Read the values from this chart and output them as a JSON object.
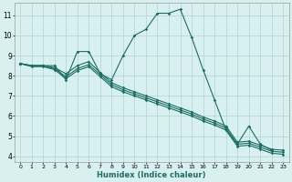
{
  "xlabel": "Humidex (Indice chaleur)",
  "bg_color": "#d8f0f0",
  "grid_color": "#b8d8d8",
  "line_color": "#1a6e64",
  "xlim": [
    -0.5,
    23.5
  ],
  "ylim": [
    3.7,
    11.6
  ],
  "xtick_labels": [
    "0",
    "1",
    "2",
    "3",
    "4",
    "5",
    "6",
    "7",
    "8",
    "9",
    "10",
    "11",
    "12",
    "13",
    "14",
    "15",
    "16",
    "17",
    "18",
    "19",
    "20",
    "21",
    "22",
    "23"
  ],
  "xtick_vals": [
    0,
    1,
    2,
    3,
    4,
    5,
    6,
    7,
    8,
    9,
    10,
    11,
    12,
    13,
    14,
    15,
    16,
    17,
    18,
    19,
    20,
    21,
    22,
    23
  ],
  "ytick_vals": [
    4,
    5,
    6,
    7,
    8,
    9,
    10,
    11
  ],
  "line1_x": [
    0,
    1,
    2,
    3,
    4,
    5,
    6,
    7,
    8,
    9,
    10,
    11,
    12,
    13,
    14,
    15,
    16,
    17,
    18,
    19,
    20,
    21,
    22
  ],
  "line1_y": [
    8.6,
    8.5,
    8.5,
    8.5,
    7.8,
    9.2,
    9.2,
    8.1,
    7.8,
    9.0,
    10.0,
    10.3,
    11.1,
    11.1,
    11.3,
    9.9,
    8.3,
    6.8,
    5.3,
    4.6,
    5.5,
    4.6,
    4.3
  ],
  "line2_x": [
    0,
    1,
    2,
    3,
    4,
    5,
    6,
    7,
    8,
    9,
    10,
    11,
    12,
    13,
    14,
    15,
    16,
    17,
    18,
    19,
    20,
    21,
    22,
    23
  ],
  "line2_y": [
    8.6,
    8.5,
    8.5,
    8.4,
    8.1,
    8.5,
    8.7,
    8.15,
    7.65,
    7.4,
    7.2,
    7.0,
    6.8,
    6.6,
    6.4,
    6.2,
    5.95,
    5.75,
    5.5,
    4.7,
    4.75,
    4.55,
    4.35,
    4.3
  ],
  "line3_x": [
    0,
    1,
    2,
    3,
    4,
    5,
    6,
    7,
    8,
    9,
    10,
    11,
    12,
    13,
    14,
    15,
    16,
    17,
    18,
    19,
    20,
    21,
    22,
    23
  ],
  "line3_y": [
    8.6,
    8.5,
    8.5,
    8.35,
    7.95,
    8.35,
    8.55,
    8.05,
    7.55,
    7.3,
    7.1,
    6.9,
    6.7,
    6.5,
    6.3,
    6.1,
    5.85,
    5.65,
    5.4,
    4.6,
    4.65,
    4.45,
    4.25,
    4.2
  ],
  "line4_x": [
    0,
    1,
    2,
    3,
    4,
    5,
    6,
    7,
    8,
    9,
    10,
    11,
    12,
    13,
    14,
    15,
    16,
    17,
    18,
    19,
    20,
    21,
    22,
    23
  ],
  "line4_y": [
    8.6,
    8.45,
    8.45,
    8.3,
    7.85,
    8.25,
    8.45,
    7.95,
    7.45,
    7.2,
    7.0,
    6.8,
    6.6,
    6.4,
    6.2,
    6.0,
    5.75,
    5.55,
    5.3,
    4.5,
    4.55,
    4.35,
    4.15,
    4.1
  ]
}
